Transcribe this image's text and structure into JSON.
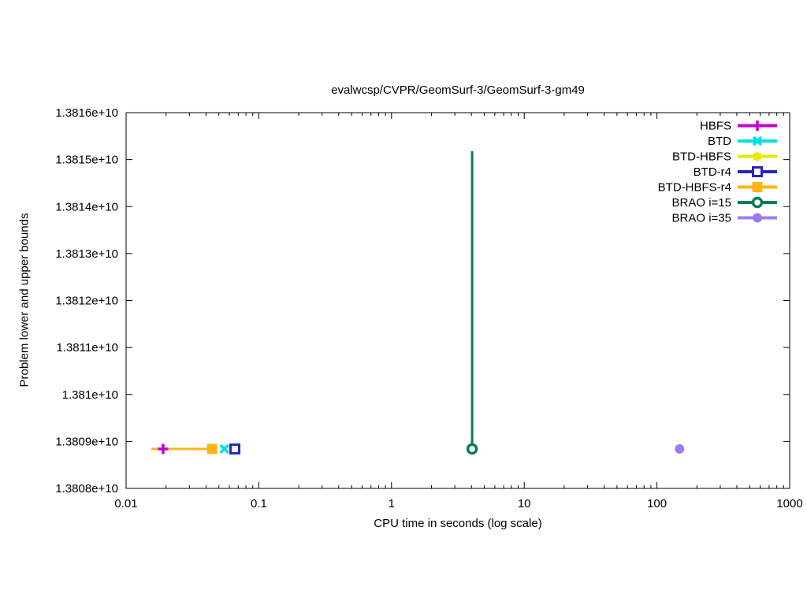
{
  "chart_data": {
    "type": "line",
    "title": "evalwcsp/CVPR/GeomSurf-3/GeomSurf-3-gm49",
    "xlabel": "CPU time in seconds (log scale)",
    "ylabel": "Problem lower and upper bounds",
    "x_scale": "log",
    "y_scale": "linear",
    "xlim": [
      0.01,
      1000
    ],
    "ylim": [
      13808000000,
      13816000000
    ],
    "grid": false,
    "legend_position": "top-right-inside",
    "x_ticks": [
      {
        "v": 0.01,
        "label": "0.01"
      },
      {
        "v": 0.1,
        "label": "0.1"
      },
      {
        "v": 1,
        "label": "1"
      },
      {
        "v": 10,
        "label": "10"
      },
      {
        "v": 100,
        "label": "100"
      },
      {
        "v": 1000,
        "label": "1000"
      }
    ],
    "y_ticks": [
      {
        "v": 13808000000,
        "label": "1.3808e+10"
      },
      {
        "v": 13809000000,
        "label": "1.3809e+10"
      },
      {
        "v": 13810000000,
        "label": "1.381e+10"
      },
      {
        "v": 13811000000,
        "label": "1.3811e+10"
      },
      {
        "v": 13812000000,
        "label": "1.3812e+10"
      },
      {
        "v": 13813000000,
        "label": "1.3813e+10"
      },
      {
        "v": 13814000000,
        "label": "1.3814e+10"
      },
      {
        "v": 13815000000,
        "label": "1.3815e+10"
      },
      {
        "v": 13816000000,
        "label": "1.3816e+10"
      }
    ],
    "series": [
      {
        "name": "HBFS",
        "color": "#c000d0",
        "marker": "plus",
        "points": [
          [
            0.019,
            13808840000
          ]
        ]
      },
      {
        "name": "BTD",
        "color": "#00e0e0",
        "marker": "x",
        "points": [
          [
            0.055,
            13808840000
          ]
        ]
      },
      {
        "name": "BTD-HBFS",
        "color": "#e8e800",
        "marker": "star",
        "points": [
          [
            0.0445,
            13808840000
          ]
        ]
      },
      {
        "name": "BTD-r4",
        "color": "#2626bd",
        "marker": "open-square",
        "points": [
          [
            0.066,
            13808840000
          ]
        ]
      },
      {
        "name": "BTD-HBFS-r4",
        "color": "#ffb515",
        "marker": "filled-square",
        "points": [
          [
            0.0445,
            13808840000
          ]
        ],
        "line": [
          [
            0.0155,
            13808840000
          ],
          [
            0.047,
            13808840000
          ]
        ]
      },
      {
        "name": "BRAO i=15",
        "color": "#077e4f",
        "marker": "open-circle",
        "points": [
          [
            4.05,
            13808840000
          ]
        ],
        "line": [
          [
            4.05,
            13808840000
          ],
          [
            4.05,
            13815180000
          ]
        ]
      },
      {
        "name": "BRAO i=35",
        "color": "#9f7ceb",
        "marker": "filled-circle",
        "points": [
          [
            148,
            13808840000
          ]
        ]
      }
    ]
  }
}
